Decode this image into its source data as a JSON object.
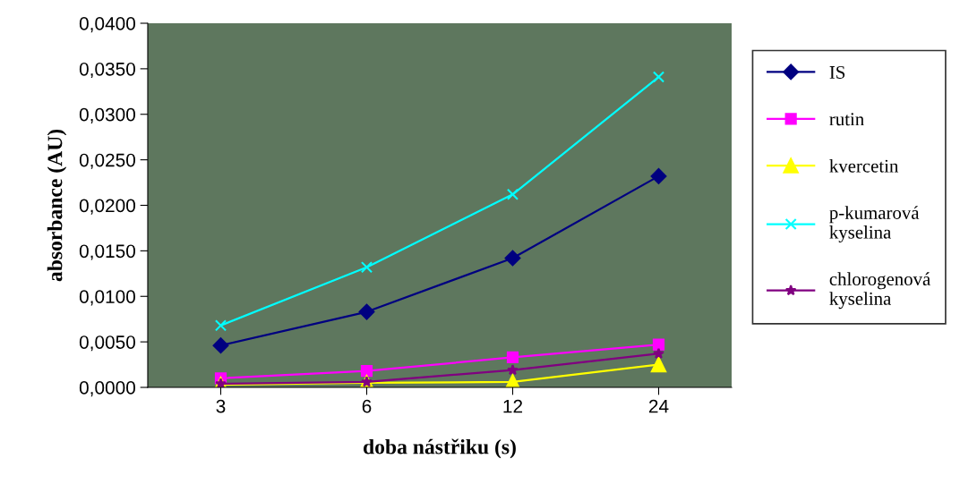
{
  "chart_data": {
    "type": "line",
    "xlabel": "doba nástřiku (s)",
    "ylabel": "absorbance (AU)",
    "categories": [
      "3",
      "6",
      "12",
      "24"
    ],
    "series": [
      {
        "name": "IS",
        "color": "#000080",
        "marker": "diamond",
        "values": [
          0.0046,
          0.0083,
          0.0142,
          0.0232
        ]
      },
      {
        "name": "rutin",
        "color": "#ff00ff",
        "marker": "square",
        "values": [
          0.001,
          0.0018,
          0.0033,
          0.0047
        ]
      },
      {
        "name": "kvercetin",
        "color": "#ffff00",
        "marker": "triangle",
        "values": [
          0.0003,
          0.0005,
          0.0006,
          0.0025
        ]
      },
      {
        "name": "p-kumarová kyselina",
        "color": "#00ffff",
        "marker": "cross",
        "values": [
          0.0068,
          0.0132,
          0.0212,
          0.0341
        ]
      },
      {
        "name": "chlorogenová kyselina",
        "color": "#800080",
        "marker": "star",
        "values": [
          0.0004,
          0.0006,
          0.0019,
          0.0037
        ]
      }
    ],
    "ylim": [
      0,
      0.04
    ],
    "yticks": [
      {
        "value": 0,
        "label": "0,0000"
      },
      {
        "value": 0.005,
        "label": "0,0050"
      },
      {
        "value": 0.01,
        "label": "0,0100"
      },
      {
        "value": 0.015,
        "label": "0,0150"
      },
      {
        "value": 0.02,
        "label": "0,0200"
      },
      {
        "value": 0.025,
        "label": "0,0250"
      },
      {
        "value": 0.03,
        "label": "0,0300"
      },
      {
        "value": 0.035,
        "label": "0,0350"
      },
      {
        "value": 0.04,
        "label": "0,0400"
      }
    ],
    "grid": false,
    "legend": "right",
    "line_style": "solid"
  }
}
